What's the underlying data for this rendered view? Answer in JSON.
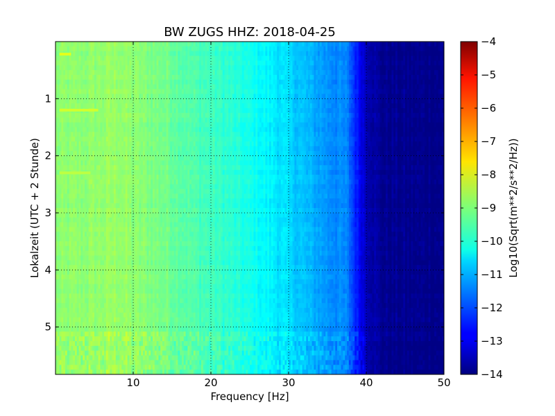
{
  "chart_data": {
    "type": "heatmap",
    "title": "BW ZUGS HHZ: 2018-04-25",
    "xlabel": "Frequency [Hz]",
    "ylabel": "Lokalzeit (UTC + 2 Stunde)",
    "colorbar_label": "Log10(Sqrt(m**2/s**2/Hz))",
    "xlim": [
      0,
      50
    ],
    "ylim": [
      0,
      5.83
    ],
    "y_inverted": true,
    "x_ticks": [
      10,
      20,
      30,
      40,
      50
    ],
    "x_tick_labels": [
      "10",
      "20",
      "30",
      "40",
      "50"
    ],
    "y_ticks": [
      1,
      2,
      3,
      4,
      5
    ],
    "y_tick_labels": [
      "1",
      "2",
      "3",
      "4",
      "5"
    ],
    "grid": true,
    "colormap": "jet",
    "clim": [
      -14,
      -4
    ],
    "colorbar_ticks": [
      -4,
      -5,
      -6,
      -7,
      -8,
      -9,
      -10,
      -11,
      -12,
      -13,
      -14
    ],
    "colorbar_tick_labels": [
      "−4",
      "−5",
      "−6",
      "−7",
      "−8",
      "−9",
      "−10",
      "−11",
      "−12",
      "−13",
      "−14"
    ],
    "spectrum_profile": {
      "frequency_hz": [
        0,
        2,
        5,
        8,
        10,
        14,
        18,
        22,
        24.5,
        28,
        32,
        35,
        37.5,
        38.5,
        40,
        42,
        45,
        50
      ],
      "log10_amplitude": [
        -8.9,
        -8.9,
        -8.85,
        -8.75,
        -8.9,
        -9.1,
        -9.5,
        -9.8,
        -10.05,
        -10.4,
        -10.9,
        -11.3,
        -11.5,
        -12.3,
        -13.4,
        -13.85,
        -13.9,
        -13.9
      ]
    },
    "noise_lines": [
      {
        "time_h": 0.22,
        "freq_from_hz": 0.5,
        "freq_to_hz": 2.0,
        "log10_amplitude": -8.0
      },
      {
        "time_h": 1.2,
        "freq_from_hz": 0.5,
        "freq_to_hz": 5.5,
        "log10_amplitude": -8.2
      },
      {
        "time_h": 2.3,
        "freq_from_hz": 0.5,
        "freq_to_hz": 4.5,
        "log10_amplitude": -8.4
      }
    ]
  }
}
